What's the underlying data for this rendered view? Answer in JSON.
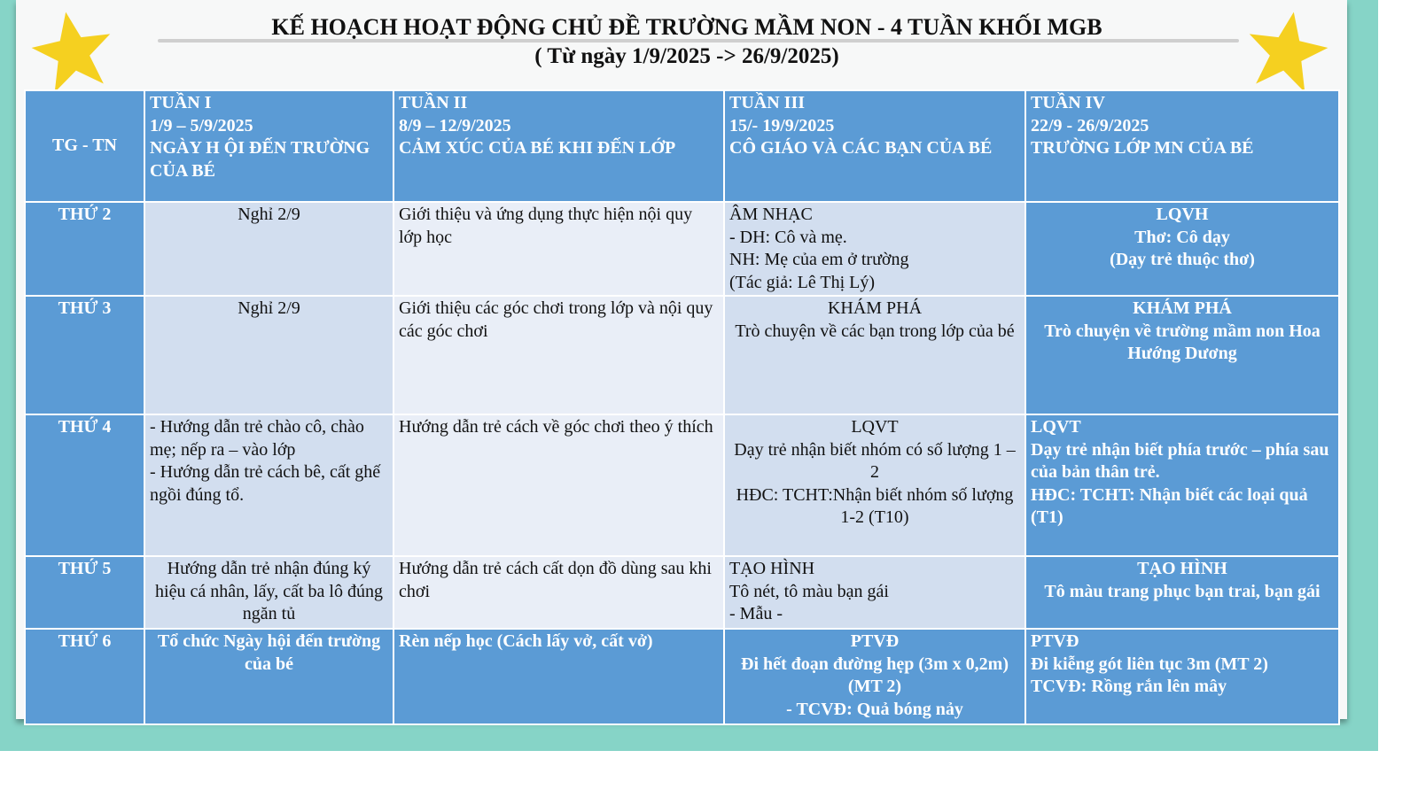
{
  "title": "KẾ HOẠCH HOẠT ĐỘNG CHỦ ĐỀ TRƯỜNG MẦM NON  - 4 TUẦN KHỐI  MGB",
  "subtitle": "( Từ ngày 1/9/2025 -> 26/9/2025)",
  "colors": {
    "teal_background": "#86d4c7",
    "header_blue": "#5b9bd5",
    "cell_light": "#d2deef",
    "cell_lighter": "#e9eef7",
    "star": "#f5d020"
  },
  "icons": [
    "star-icon-left",
    "star-icon-right"
  ],
  "table": {
    "corner": "TG - TN",
    "weeks": [
      {
        "label": "TUẦN I",
        "dates": "1/9 – 5/9/2025",
        "theme": "NGÀY H ỘI ĐẾN TRƯỜNG CỦA BÉ"
      },
      {
        "label": "TUẦN II",
        "dates": "8/9 – 12/9/2025",
        "theme": "CẢM XÚC CỦA BÉ KHI ĐẾN LỚP"
      },
      {
        "label": "TUẦN III",
        "dates": "15/- 19/9/2025",
        "theme": "CÔ GIÁO VÀ CÁC BẠN CỦA BÉ"
      },
      {
        "label": "TUẦN IV",
        "dates": "22/9 - 26/9/2025",
        "theme": "TRƯỜNG LỚP MN CỦA BÉ"
      }
    ],
    "rows": [
      {
        "day": "THỨ 2",
        "cells": [
          "Nghỉ  2/9",
          "Giới thiệu và ứng dụng thực hiện nội quy lớp học",
          "ÂM NHẠC\n- DH: Cô và mẹ.\nNH: Mẹ của em ở trường\n(Tác giả: Lê Thị Lý)",
          "LQVH\nThơ: Cô dạy\n(Dạy trẻ thuộc thơ)"
        ]
      },
      {
        "day": "THỨ 3",
        "cells": [
          "Nghỉ  2/9",
          "Giới thiệu các góc chơi trong lớp và nội quy các góc chơi",
          "KHÁM PHÁ\nTrò chuyện về các bạn trong lớp của bé",
          "KHÁM PHÁ\nTrò chuyện về trường mầm non Hoa Hướng Dương"
        ]
      },
      {
        "day": "THỨ 4",
        "cells": [
          "- Hướng dẫn trẻ chào cô, chào mẹ; nếp ra – vào lớp\n- Hướng dẫn trẻ cách bê, cất ghế ngồi đúng tổ.",
          "Hướng dẫn trẻ cách về góc chơi theo ý thích",
          "LQVT\nDạy trẻ nhận biết nhóm có số lượng 1 – 2\nHĐC: TCHT:Nhận biết nhóm số lượng 1-2 (T10)",
          "LQVT\nDạy trẻ nhận biết phía trước – phía sau của bản thân trẻ.\nHĐC: TCHT: Nhận biết các loại quả (T1)"
        ]
      },
      {
        "day": "THỨ 5",
        "cells": [
          "Hướng dẫn trẻ nhận đúng ký hiệu cá nhân, lấy, cất ba lô đúng ngăn tủ",
          "Hướng dẫn trẻ cách cất dọn đồ dùng sau khi chơi",
          "TẠO HÌNH\nTô nét, tô màu bạn gái\n- Mẫu -",
          "TẠO HÌNH\nTô màu trang phục bạn trai, bạn gái"
        ]
      },
      {
        "day": "THỨ 6",
        "cells": [
          "Tổ chức Ngày hội đến trường của bé",
          "Rèn nếp học (Cách lấy vở, cất vở)",
          "PTVĐ\nĐi hết đoạn đường hẹp (3m x 0,2m) (MT 2)\n- TCVĐ: Quả bóng nảy",
          "PTVĐ\nĐi kiễng gót liên tục 3m    (MT 2)\nTCVĐ: Rồng rắn lên mây"
        ]
      }
    ]
  }
}
